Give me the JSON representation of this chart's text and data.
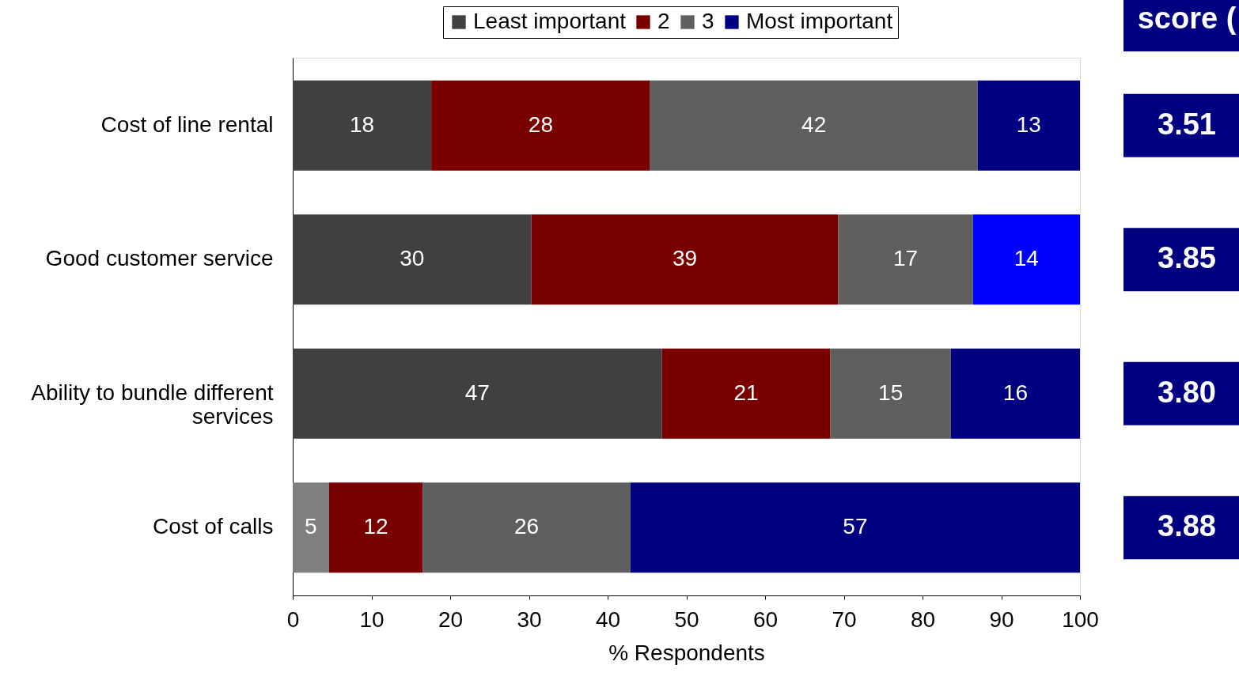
{
  "chart_data": {
    "type": "bar",
    "orientation": "horizontal",
    "stacked": true,
    "legend": "top",
    "grid": false,
    "categories": [
      "Cost of line rental",
      "Good customer service",
      "Ability to bundle different services",
      "Cost of calls"
    ],
    "xlabel": "% Respondents",
    "xlim": [
      0,
      100
    ],
    "xticks": [
      0,
      10,
      20,
      30,
      40,
      50,
      60,
      70,
      80,
      90,
      100
    ],
    "series": [
      {
        "name": "Least important",
        "color": "#404040",
        "colors": [
          "#404040",
          "#404040",
          "#404040",
          "#808080"
        ],
        "values": [
          17.6,
          30.3,
          46.9,
          4.6
        ],
        "value_labels": [
          "18",
          "30",
          "47",
          "5"
        ]
      },
      {
        "name": "2",
        "color": "#7a0000",
        "colors": [
          "#7a0000",
          "#7a0000",
          "#7a0000",
          "#7a0000"
        ],
        "values": [
          27.8,
          39.0,
          21.4,
          11.9
        ],
        "value_labels": [
          "28",
          "39",
          "21",
          "12"
        ]
      },
      {
        "name": "3",
        "color": "#5f5f5f",
        "colors": [
          "#5f5f5f",
          "#5f5f5f",
          "#5f5f5f",
          "#5f5f5f"
        ],
        "values": [
          41.6,
          17.1,
          15.3,
          26.4
        ],
        "value_labels": [
          "42",
          "17",
          "15",
          "26"
        ]
      },
      {
        "name": "Most important",
        "color": "#000080",
        "colors": [
          "#000080",
          "#0000ff",
          "#000080",
          "#000080"
        ],
        "values": [
          13.0,
          13.6,
          16.4,
          57.1
        ],
        "value_labels": [
          "13",
          "14",
          "16",
          "57"
        ]
      }
    ],
    "annotations": [
      "score (",
      "3.51",
      "3.85",
      "3.80",
      "3.88"
    ]
  }
}
